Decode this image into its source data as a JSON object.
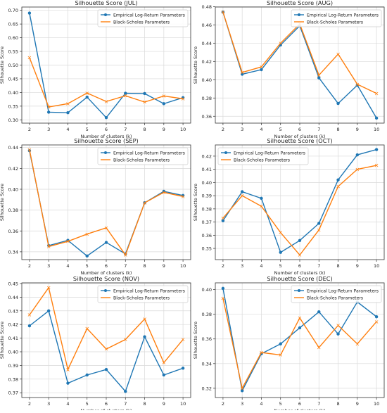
{
  "chart_data": [
    {
      "type": "line",
      "title": "Silhouette Score (JUL)",
      "xlabel": "Number of clusters (k)",
      "ylabel": "Silhouette Score",
      "x": [
        2,
        3,
        4,
        5,
        6,
        7,
        8,
        9,
        10
      ],
      "xlim": [
        1.6,
        10.4
      ],
      "ylim": [
        0.288,
        0.712
      ],
      "yticks": [
        0.3,
        0.35,
        0.4,
        0.45,
        0.5,
        0.55,
        0.6,
        0.65,
        0.7
      ],
      "ytick_labels": [
        "0.30",
        "0.35",
        "0.40",
        "0.45",
        "0.50",
        "0.55",
        "0.60",
        "0.65",
        "0.70"
      ],
      "legend": "top-right",
      "grid": true,
      "series": [
        {
          "name": "Empirical Log-Return Parameters",
          "color": "#1f77b4",
          "values": [
            0.69,
            0.328,
            0.326,
            0.383,
            0.308,
            0.397,
            0.396,
            0.359,
            0.381
          ]
        },
        {
          "name": "Black-Scholes Parameters",
          "color": "#ff7f0e",
          "values": [
            0.527,
            0.347,
            0.359,
            0.398,
            0.367,
            0.388,
            0.365,
            0.387,
            0.377
          ]
        }
      ]
    },
    {
      "type": "line",
      "title": "Silhouette Score (AUG)",
      "xlabel": "Number of clusters (k)",
      "ylabel": "Silhouette Score",
      "x": [
        2,
        3,
        4,
        5,
        6,
        7,
        8,
        9,
        10
      ],
      "xlim": [
        1.6,
        10.4
      ],
      "ylim": [
        0.3525,
        0.4795
      ],
      "yticks": [
        0.36,
        0.38,
        0.4,
        0.42,
        0.44,
        0.46,
        0.48
      ],
      "ytick_labels": [
        "0.36",
        "0.38",
        "0.40",
        "0.42",
        "0.44",
        "0.46",
        "0.48"
      ],
      "legend": "top-right",
      "grid": true,
      "series": [
        {
          "name": "Empirical Log-Return Parameters",
          "color": "#1f77b4",
          "values": [
            0.474,
            0.406,
            0.411,
            0.438,
            0.459,
            0.402,
            0.374,
            0.394,
            0.358
          ]
        },
        {
          "name": "Black-Scholes Parameters",
          "color": "#ff7f0e",
          "values": [
            0.474,
            0.408,
            0.414,
            0.44,
            0.461,
            0.405,
            0.428,
            0.395,
            0.385
          ]
        }
      ]
    },
    {
      "type": "line",
      "title": "Silhouette Score (SEP)",
      "xlabel": "Number of clusters (k)",
      "ylabel": "Silhouette Score",
      "x": [
        2,
        3,
        4,
        5,
        6,
        7,
        8,
        9,
        10
      ],
      "xlim": [
        1.6,
        10.4
      ],
      "ylim": [
        0.3325,
        0.4425
      ],
      "yticks": [
        0.34,
        0.36,
        0.38,
        0.4,
        0.42,
        0.44
      ],
      "ytick_labels": [
        "0.34",
        "0.36",
        "0.38",
        "0.40",
        "0.42",
        "0.44"
      ],
      "legend": "top-right",
      "grid": true,
      "series": [
        {
          "name": "Empirical Log-Return Parameters",
          "color": "#1f77b4",
          "values": [
            0.437,
            0.346,
            0.351,
            0.336,
            0.349,
            0.338,
            0.387,
            0.398,
            0.394
          ]
        },
        {
          "name": "Black-Scholes Parameters",
          "color": "#ff7f0e",
          "values": [
            0.438,
            0.345,
            0.35,
            0.357,
            0.363,
            0.337,
            0.387,
            0.397,
            0.393
          ]
        }
      ]
    },
    {
      "type": "line",
      "title": "Silhouette Score (OCT)",
      "xlabel": "Number of clusters (k)",
      "ylabel": "Silhouette Score",
      "x": [
        2,
        3,
        4,
        5,
        6,
        7,
        8,
        9,
        10
      ],
      "xlim": [
        1.6,
        10.4
      ],
      "ylim": [
        0.3415,
        0.4285
      ],
      "yticks": [
        0.35,
        0.36,
        0.37,
        0.38,
        0.39,
        0.4,
        0.41,
        0.42
      ],
      "ytick_labels": [
        "0.35",
        "0.36",
        "0.37",
        "0.38",
        "0.39",
        "0.40",
        "0.41",
        "0.42"
      ],
      "legend": "top-left",
      "grid": true,
      "series": [
        {
          "name": "Empirical Log-Return Parameters",
          "color": "#1f77b4",
          "values": [
            0.371,
            0.393,
            0.388,
            0.347,
            0.356,
            0.369,
            0.402,
            0.421,
            0.425
          ]
        },
        {
          "name": "Black-Scholes Parameters",
          "color": "#ff7f0e",
          "values": [
            0.373,
            0.39,
            0.382,
            0.362,
            0.345,
            0.364,
            0.397,
            0.41,
            0.413
          ]
        }
      ]
    },
    {
      "type": "line",
      "title": "Silhouette Score (NOV)",
      "xlabel": "Number of clusters (k)",
      "ylabel": "Silhouette Score",
      "x": [
        2,
        3,
        4,
        5,
        6,
        7,
        8,
        9,
        10
      ],
      "xlim": [
        1.6,
        10.4
      ],
      "ylim": [
        0.3665,
        0.4505
      ],
      "yticks": [
        0.37,
        0.38,
        0.39,
        0.4,
        0.41,
        0.42,
        0.43,
        0.44,
        0.45
      ],
      "ytick_labels": [
        "0.37",
        "0.38",
        "0.39",
        "0.40",
        "0.41",
        "0.42",
        "0.43",
        "0.44",
        "0.45"
      ],
      "legend": "top-right",
      "grid": true,
      "series": [
        {
          "name": "Empirical Log-Return Parameters",
          "color": "#1f77b4",
          "values": [
            0.419,
            0.43,
            0.377,
            0.383,
            0.387,
            0.371,
            0.411,
            0.383,
            0.388
          ]
        },
        {
          "name": "Black-Scholes Parameters",
          "color": "#ff7f0e",
          "values": [
            0.427,
            0.447,
            0.387,
            0.417,
            0.402,
            0.409,
            0.424,
            0.392,
            0.409
          ]
        }
      ]
    },
    {
      "type": "line",
      "title": "Silhouette Score (DEC)",
      "xlabel": "Number of clusters (k)",
      "ylabel": "Silhouette Score",
      "x": [
        2,
        3,
        4,
        5,
        6,
        7,
        8,
        9,
        10
      ],
      "xlim": [
        1.6,
        10.4
      ],
      "ylim": [
        0.3125,
        0.4055
      ],
      "yticks": [
        0.32,
        0.34,
        0.36,
        0.38,
        0.4
      ],
      "ytick_labels": [
        "0.32",
        "0.34",
        "0.36",
        "0.38",
        "0.40"
      ],
      "legend": "top-right",
      "grid": true,
      "series": [
        {
          "name": "Empirical Log-Return Parameters",
          "color": "#1f77b4",
          "values": [
            0.401,
            0.318,
            0.348,
            0.356,
            0.369,
            0.382,
            0.364,
            0.39,
            0.378
          ]
        },
        {
          "name": "Black-Scholes Parameters",
          "color": "#ff7f0e",
          "values": [
            0.393,
            0.32,
            0.349,
            0.347,
            0.377,
            0.353,
            0.371,
            0.356,
            0.374
          ]
        }
      ]
    }
  ]
}
